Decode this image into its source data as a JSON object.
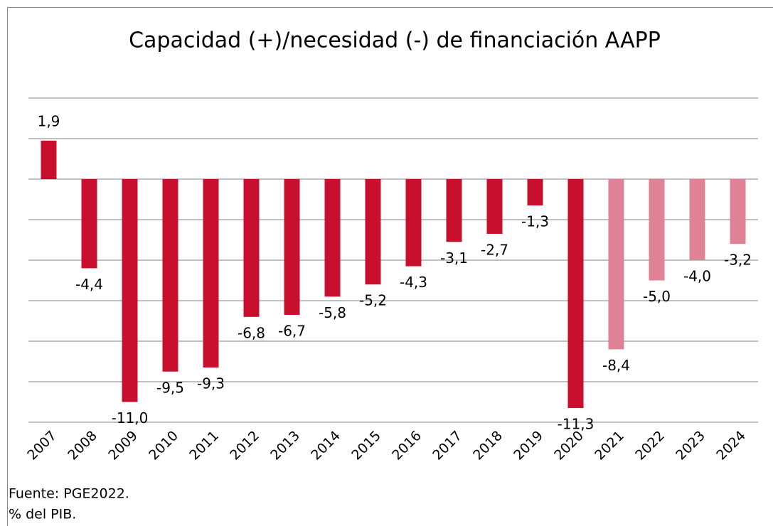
{
  "chart_data": {
    "type": "bar",
    "title": "Capacidad (+)/necesidad (-) de financiación AAPP",
    "categories": [
      "2007",
      "2008",
      "2009",
      "2010",
      "2011",
      "2012",
      "2013",
      "2014",
      "2015",
      "2016",
      "2017",
      "2018",
      "2019",
      "2020",
      "2021",
      "2022",
      "2023",
      "2024"
    ],
    "values": [
      1.9,
      -4.4,
      -11.0,
      -9.5,
      -9.3,
      -6.8,
      -6.7,
      -5.8,
      -5.2,
      -4.3,
      -3.1,
      -2.7,
      -1.3,
      -11.3,
      -8.4,
      -5.0,
      -4.0,
      -3.2
    ],
    "value_labels": [
      "1,9",
      "-4,4",
      "-11,0",
      "-9,5",
      "-9,3",
      "-6,8",
      "-6,7",
      "-5,8",
      "-5,2",
      "-4,3",
      "-3,1",
      "-2,7",
      "-1,3",
      "-11,3",
      "-8,4",
      "-5,0",
      "-4,0",
      "-3,2"
    ],
    "colors": [
      "#c8102e",
      "#c8102e",
      "#c8102e",
      "#c8102e",
      "#c8102e",
      "#c8102e",
      "#c8102e",
      "#c8102e",
      "#c8102e",
      "#c8102e",
      "#c8102e",
      "#c8102e",
      "#c8102e",
      "#c8102e",
      "#e08295",
      "#e08295",
      "#e08295",
      "#e08295"
    ],
    "ylim": [
      -12,
      4
    ],
    "yticks": [
      -12,
      -10,
      -8,
      -6,
      -4,
      -2,
      0,
      2,
      4
    ],
    "grid": true,
    "notes": [
      "Fuente:  PGE2022.",
      "% del PIB."
    ]
  }
}
